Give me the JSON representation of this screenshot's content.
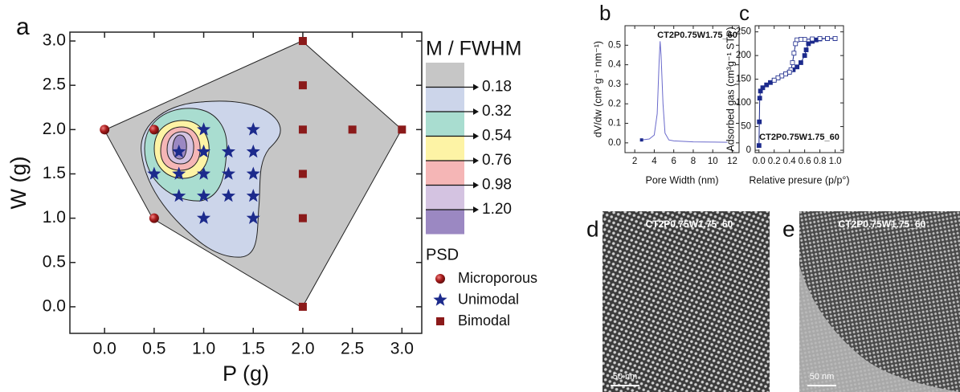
{
  "chart_data": [
    {
      "type": "scatter",
      "panel_label": "a",
      "xlabel": "P (g)",
      "ylabel": "W (g)",
      "xlim": [
        -0.35,
        3.2
      ],
      "ylim": [
        -0.3,
        3.1
      ],
      "xticks": [
        {
          "value": 0,
          "label": "0.0"
        },
        0.5,
        {
          "value": 1,
          "label": "1.0"
        },
        1.5,
        {
          "value": 2,
          "label": "2.0"
        },
        2.5,
        {
          "value": 3,
          "label": "3.0"
        }
      ],
      "yticks": [
        {
          "value": 0,
          "label": "0.0"
        },
        0.5,
        {
          "value": 1,
          "label": "1.0"
        },
        1.5,
        {
          "value": 2,
          "label": "2.0"
        },
        2.5,
        {
          "value": 3,
          "label": "3.0"
        }
      ],
      "colorbar": {
        "title": "M / FWHM",
        "levels": [
          0.18,
          0.32,
          0.54,
          0.76,
          0.98,
          {
            "value": 1.2,
            "label": "1.20"
          }
        ],
        "colors": [
          "#c6c6c6",
          "#ccd5ea",
          "#a9ddd0",
          "#fdf3a5",
          "#f5b6b6",
          "#d4c3e1",
          "#9b88c2"
        ]
      },
      "legend_title": "PSD",
      "series": [
        {
          "name": "Microporous",
          "marker": "circle",
          "color": "#9b1b1b",
          "x": [
            0,
            0.5,
            0.5
          ],
          "y": [
            2,
            2,
            1
          ]
        },
        {
          "name": "Unimodal",
          "marker": "star",
          "color": "#1c2a8c",
          "x": [
            0.75,
            1,
            1,
            0.5,
            0.75,
            1,
            0.75,
            1,
            1,
            1.25,
            1.25,
            1.25,
            1.5,
            1.5,
            1.5,
            1.5,
            1.5
          ],
          "y": [
            1.75,
            2,
            1.75,
            1.5,
            1.5,
            1.5,
            1.25,
            1.25,
            1,
            1.75,
            1.5,
            1.25,
            2,
            1.75,
            1.5,
            1.25,
            1
          ]
        },
        {
          "name": "Bimodal",
          "marker": "square",
          "color": "#8b1a1a",
          "x": [
            2,
            2,
            2,
            2,
            2,
            2,
            2.5,
            3
          ],
          "y": [
            3,
            2.5,
            2,
            1.5,
            1,
            0,
            2,
            2
          ]
        }
      ]
    },
    {
      "type": "line",
      "panel_label": "b",
      "annotation": "CT2P0.75W1.75_60",
      "xlabel": "Pore Width (nm)",
      "ylabel": "dV/dw (cm³ g⁻¹ nm⁻¹)",
      "xlim": [
        1,
        12.7
      ],
      "ylim": [
        -0.05,
        0.6
      ],
      "xticks": [
        2,
        4,
        6,
        8,
        10,
        12
      ],
      "yticks": [
        {
          "value": 0,
          "label": "0.0"
        },
        0.1,
        0.2,
        0.3,
        0.4,
        0.5
      ],
      "series": [
        {
          "color": "#6a6acb",
          "x": [
            2.7,
            3.5,
            4.0,
            4.3,
            4.5,
            4.6,
            4.7,
            4.9,
            5.1,
            5.5,
            6,
            8,
            10,
            11.5
          ],
          "values": [
            0.015,
            0.02,
            0.04,
            0.15,
            0.42,
            0.52,
            0.45,
            0.2,
            0.05,
            0.015,
            0.01,
            0.005,
            0.004,
            0.003
          ]
        }
      ]
    },
    {
      "type": "line",
      "panel_label": "c",
      "annotation": "CT2P0.75W1.75_60",
      "xlabel": "Relative presure (p/p°)",
      "ylabel": "Adsorbed gas (cm³g⁻¹ STP)",
      "xlim": [
        -0.05,
        1.11
      ],
      "ylim": [
        -5,
        263
      ],
      "xticks": [
        {
          "value": 0,
          "label": "0.0"
        },
        0.2,
        0.4,
        0.6,
        0.8,
        {
          "value": 1,
          "label": "1.0"
        }
      ],
      "yticks": [
        0,
        50,
        100,
        150,
        200,
        250
      ],
      "series": [
        {
          "color": "#1c2a8c",
          "marker_filled": true,
          "x": [
            0.001,
            0.005,
            0.01,
            0.02,
            0.05,
            0.1,
            0.15,
            0.2,
            0.25,
            0.3,
            0.35,
            0.4,
            0.45,
            0.5,
            0.55,
            0.6,
            0.62,
            0.65,
            0.7,
            0.75,
            0.8,
            0.9,
            1.0
          ],
          "values": [
            10,
            60,
            110,
            125,
            132,
            138,
            143,
            148,
            153,
            157,
            161,
            165,
            170,
            176,
            185,
            200,
            212,
            225,
            230,
            233,
            235,
            236,
            236
          ]
        },
        {
          "color": "#1c2a8c",
          "marker_filled": false,
          "x": [
            1.0,
            0.9,
            0.8,
            0.7,
            0.6,
            0.55,
            0.5,
            0.48,
            0.46,
            0.44,
            0.42,
            0.4,
            0.35,
            0.3,
            0.25,
            0.2
          ],
          "values": [
            236,
            236,
            236,
            235,
            234,
            234,
            233,
            225,
            205,
            185,
            170,
            165,
            161,
            157,
            153,
            148
          ]
        }
      ]
    }
  ],
  "images": [
    {
      "panel_label": "d",
      "caption": "CT2P0.75W1.75_60",
      "scale_bar": "50 nm"
    },
    {
      "panel_label": "e",
      "caption": "CT2P0.75W1.75_60",
      "scale_bar": "50 nm"
    }
  ]
}
